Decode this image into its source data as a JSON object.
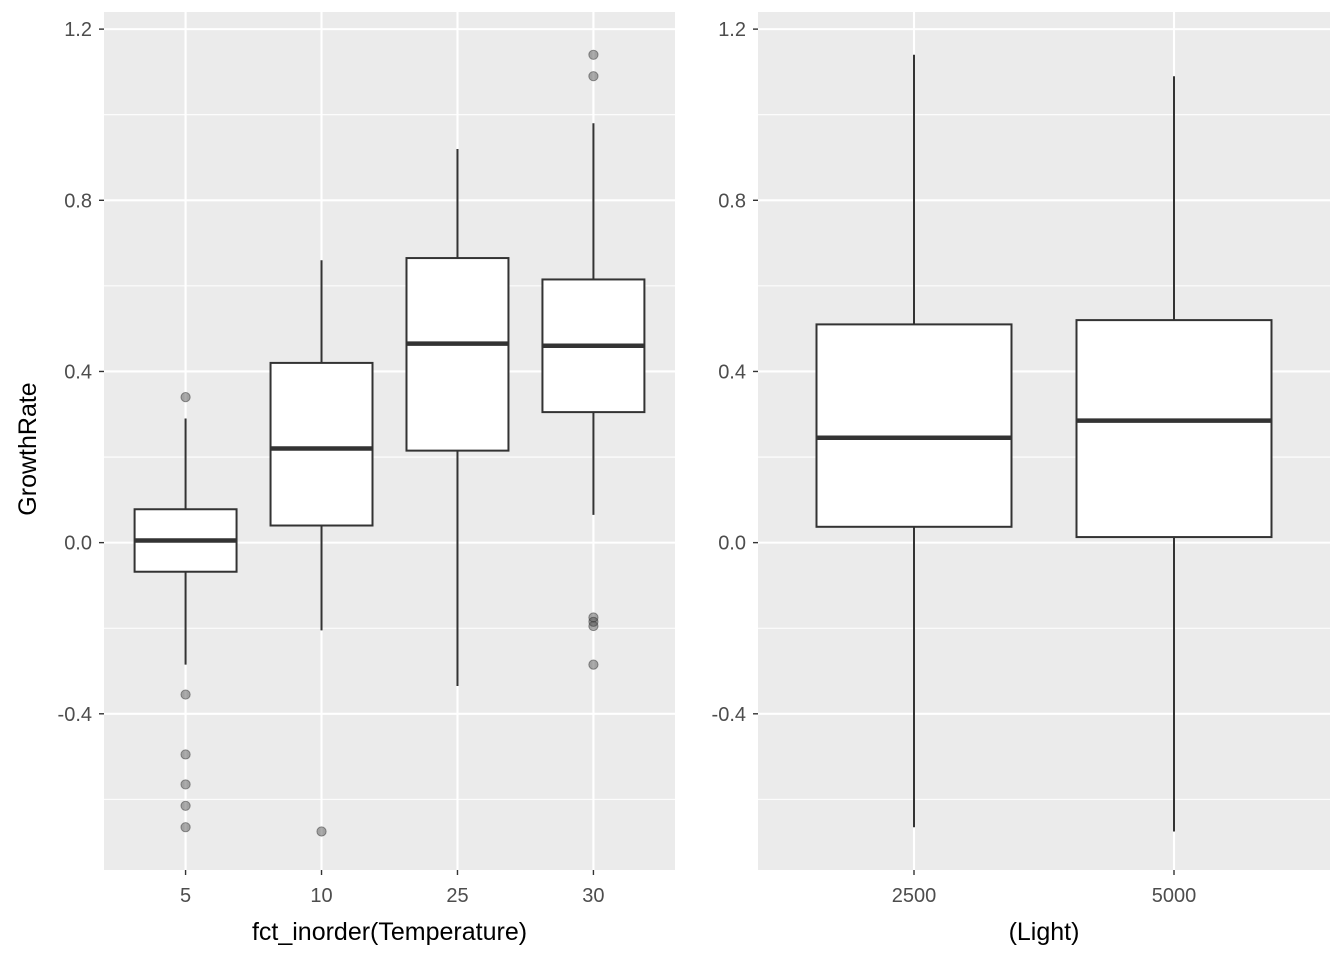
{
  "chart_data": [
    {
      "type": "boxplot",
      "xlabel": "fct_inorder(Temperature)",
      "ylabel": "GrowthRate",
      "ylim": [
        -0.765,
        1.24
      ],
      "yticks": [
        -0.4,
        0.0,
        0.4,
        0.8,
        1.2
      ],
      "ytick_labels": [
        "-0.4",
        "0.0",
        "0.4",
        "0.8",
        "1.2"
      ],
      "grid": true,
      "categories": [
        "5",
        "10",
        "25",
        "30"
      ],
      "boxes": [
        {
          "category": "5",
          "whisker_low": -0.285,
          "q1": -0.068,
          "median": 0.005,
          "q3": 0.078,
          "whisker_high": 0.29,
          "outliers": [
            0.34,
            -0.355,
            -0.495,
            -0.565,
            -0.615,
            -0.665
          ]
        },
        {
          "category": "10",
          "whisker_low": -0.205,
          "q1": 0.04,
          "median": 0.22,
          "q3": 0.42,
          "whisker_high": 0.66,
          "outliers": [
            -0.675
          ]
        },
        {
          "category": "25",
          "whisker_low": -0.335,
          "q1": 0.215,
          "median": 0.465,
          "q3": 0.665,
          "whisker_high": 0.92,
          "outliers": []
        },
        {
          "category": "30",
          "whisker_low": 0.065,
          "q1": 0.305,
          "median": 0.46,
          "q3": 0.615,
          "whisker_high": 0.98,
          "outliers": [
            1.14,
            1.09,
            -0.175,
            -0.185,
            -0.195,
            -0.285
          ]
        }
      ]
    },
    {
      "type": "boxplot",
      "xlabel": "(Light)",
      "ylabel": "",
      "ylim": [
        -0.765,
        1.24
      ],
      "yticks": [
        -0.4,
        0.0,
        0.4,
        0.8,
        1.2
      ],
      "ytick_labels": [
        "-0.4",
        "0.0",
        "0.4",
        "0.8",
        "1.2"
      ],
      "grid": true,
      "categories": [
        "2500",
        "5000"
      ],
      "boxes": [
        {
          "category": "2500",
          "whisker_low": -0.665,
          "q1": 0.037,
          "median": 0.245,
          "q3": 0.51,
          "whisker_high": 1.14,
          "outliers": []
        },
        {
          "category": "5000",
          "whisker_low": -0.675,
          "q1": 0.013,
          "median": 0.285,
          "q3": 0.52,
          "whisker_high": 1.09,
          "outliers": []
        }
      ]
    }
  ]
}
